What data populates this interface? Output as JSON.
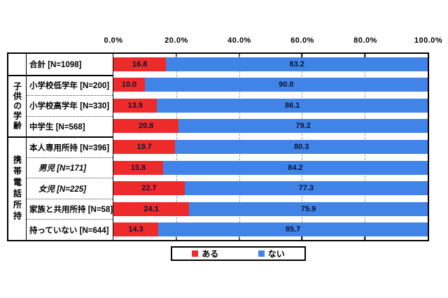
{
  "chart_data": {
    "type": "bar",
    "orientation": "horizontal",
    "stacked": true,
    "unit": "%",
    "xlim": [
      0,
      100
    ],
    "x_ticks": [
      "0.0%",
      "20.0%",
      "40.0%",
      "60.0%",
      "80.0%",
      "100.0%"
    ],
    "grid": "dashed-vertical-at-20-40-60-80",
    "legend_position": "bottom",
    "legend": [
      {
        "name": "ある",
        "color": "#ee2b2b"
      },
      {
        "name": "ない",
        "color": "#4084e8"
      }
    ],
    "groups": [
      {
        "label": "",
        "row_indexes": [
          0
        ]
      },
      {
        "label": "子供の学齢",
        "row_indexes": [
          1,
          2,
          3
        ]
      },
      {
        "label": "携帯電話所持",
        "row_indexes": [
          4,
          5,
          6,
          7,
          8
        ]
      }
    ],
    "rows": [
      {
        "label": "合計 [N=1098]",
        "aru": "16.8",
        "nai": "83.2"
      },
      {
        "label": "小学校低学年 [N=200]",
        "aru": "10.0",
        "nai": "90.0"
      },
      {
        "label": "小学校高学年 [N=330]",
        "aru": "13.9",
        "nai": "86.1"
      },
      {
        "label": "中学生 [N=568]",
        "aru": "20.8",
        "nai": "79.2"
      },
      {
        "label": "本人専用所持 [N=396]",
        "aru": "19.7",
        "nai": "80.3"
      },
      {
        "label": "男児 [N=171]",
        "aru": "15.8",
        "nai": "84.2",
        "style": "italic"
      },
      {
        "label": "女児 [N=225]",
        "aru": "22.7",
        "nai": "77.3",
        "style": "italic"
      },
      {
        "label": "家族と共用所持 [N=58]",
        "aru": "24.1",
        "nai": "75.9"
      },
      {
        "label": "持っていない [N=644]",
        "aru": "14.3",
        "nai": "85.7"
      }
    ]
  }
}
